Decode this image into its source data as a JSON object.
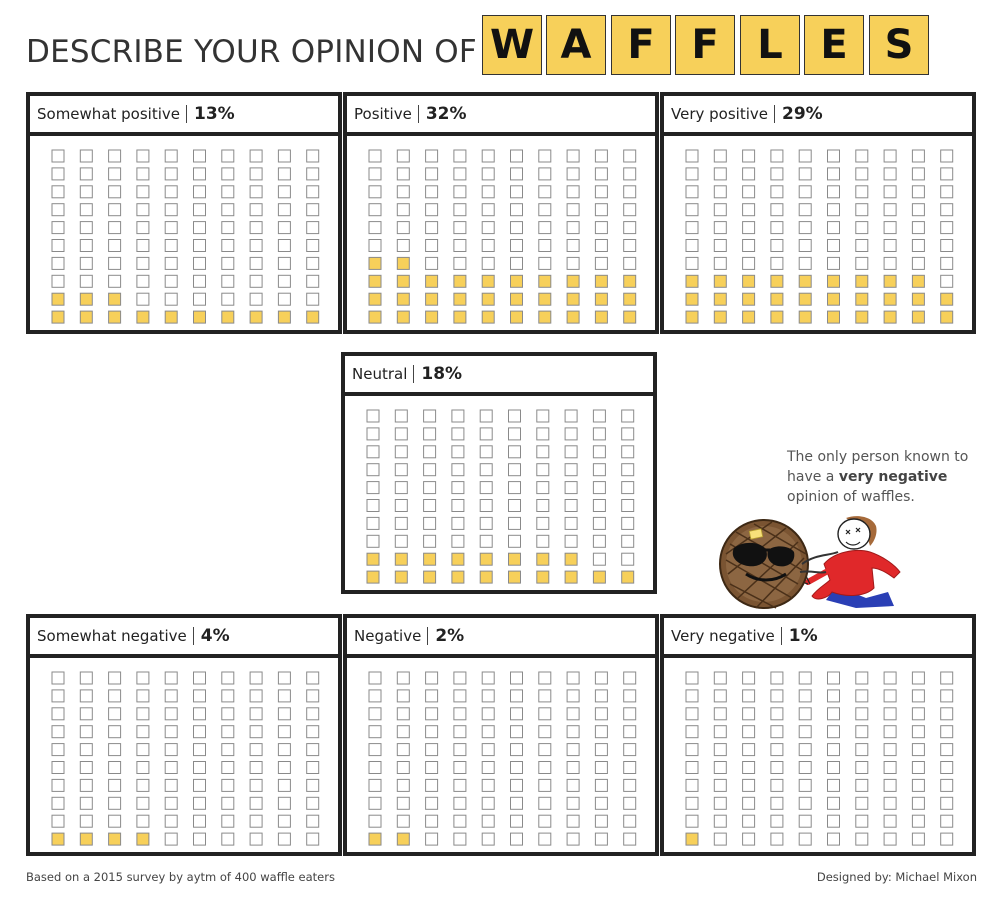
{
  "title": "DESCRIBE YOUR OPINION OF",
  "title_tiles": [
    "W",
    "A",
    "F",
    "F",
    "L",
    "E",
    "S"
  ],
  "colors": {
    "filled": "#f7d05a",
    "empty": "#ffffff",
    "border": "#222222",
    "tile": "#f7d05a"
  },
  "chart_data": {
    "type": "waffle",
    "grid": {
      "rows": 10,
      "columns": 10
    },
    "panels": [
      {
        "label": "Somewhat positive",
        "pct_label": "13%",
        "value": 13
      },
      {
        "label": "Positive",
        "pct_label": "32%",
        "value": 32
      },
      {
        "label": "Very positive",
        "pct_label": "29%",
        "value": 29
      },
      {
        "label": "Neutral",
        "pct_label": "18%",
        "value": 18
      },
      {
        "label": "Somewhat negative",
        "pct_label": "4%",
        "value": 4
      },
      {
        "label": "Negative",
        "pct_label": "2%",
        "value": 2
      },
      {
        "label": "Very negative",
        "pct_label": "1%",
        "value": 1
      }
    ]
  },
  "annotation": {
    "line1": "The only person known to",
    "line2_pre": "have a ",
    "line2_bold": "very negative",
    "line3": "opinion of waffles."
  },
  "footer": {
    "source": "Based on a 2015 survey by aytm of 400 waffle eaters",
    "credit": "Designed by: Michael Mixon"
  }
}
